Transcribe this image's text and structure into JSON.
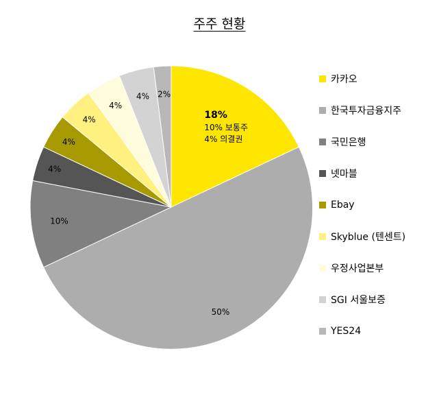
{
  "chart_data": {
    "type": "pie",
    "title": "주주 현황",
    "legend_position": "right",
    "start_angle": "12 o'clock, clockwise",
    "slices": [
      {
        "name": "카카오",
        "value": 18,
        "label": "18%",
        "sublabels": [
          "10% 보통주",
          "4% 의결권"
        ],
        "color": "#ffe600"
      },
      {
        "name": "한국투자금융지주",
        "value": 50,
        "label": "50%",
        "color": "#adadad"
      },
      {
        "name": "국민은행",
        "value": 10,
        "label": "10%",
        "color": "#808080"
      },
      {
        "name": "넷마블",
        "value": 4,
        "label": "4%",
        "color": "#555555"
      },
      {
        "name": "Ebay",
        "value": 4,
        "label": "4%",
        "color": "#a69a00"
      },
      {
        "name": "Skyblue (텐센트)",
        "value": 4,
        "label": "4%",
        "color": "#fff07f"
      },
      {
        "name": "우정사업본부",
        "value": 4,
        "label": "4%",
        "color": "#fffbdd"
      },
      {
        "name": "SGI 서울보증",
        "value": 4,
        "label": "4%",
        "color": "#d3d3d3"
      },
      {
        "name": "YES24",
        "value": 2,
        "label": "2%",
        "color": "#b8b8b8"
      }
    ]
  }
}
